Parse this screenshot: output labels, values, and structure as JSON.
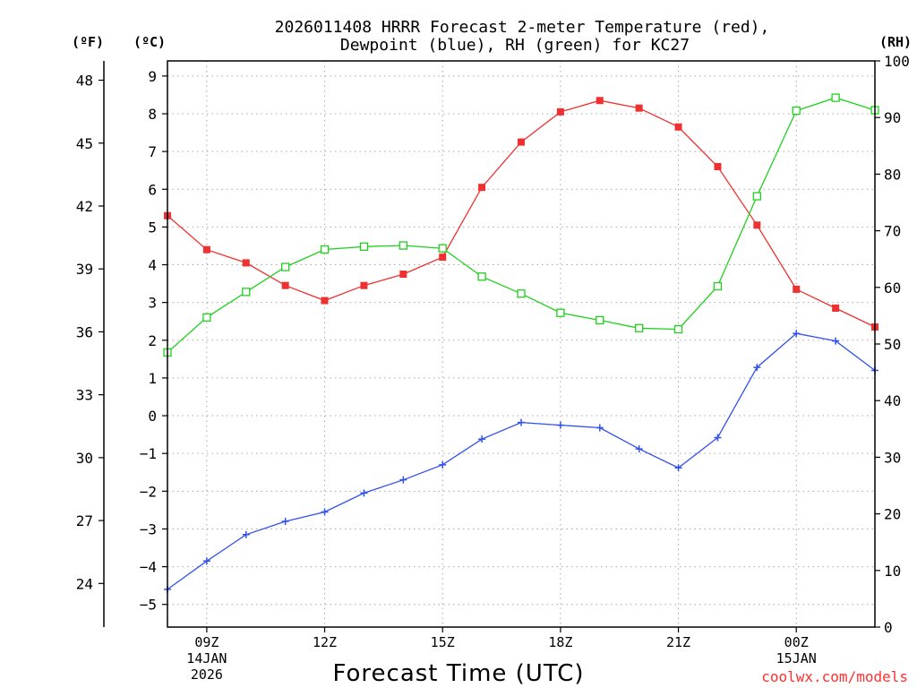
{
  "chart_data": {
    "type": "line",
    "title": [
      "2026011408 HRRR Forecast 2-meter Temperature (red),",
      "Dewpoint (blue), RH (green) for KC27"
    ],
    "xlabel": "Forecast Time (UTC)",
    "credit": "coolwx.com/models",
    "units": {
      "fahrenheit": "(ºF)",
      "celsius": "(ºC)",
      "rh": "(RH)"
    },
    "x_hours": [
      8,
      9,
      10,
      11,
      12,
      13,
      14,
      15,
      16,
      17,
      18,
      19,
      20,
      21,
      22,
      23,
      24,
      25,
      26
    ],
    "x_ticks": [
      {
        "hour": 9,
        "lines": [
          "09Z",
          "14JAN",
          "2026"
        ]
      },
      {
        "hour": 12,
        "lines": [
          "12Z"
        ]
      },
      {
        "hour": 15,
        "lines": [
          "15Z"
        ]
      },
      {
        "hour": 18,
        "lines": [
          "18Z"
        ]
      },
      {
        "hour": 21,
        "lines": [
          "21Z"
        ]
      },
      {
        "hour": 24,
        "lines": [
          "00Z",
          "15JAN"
        ]
      }
    ],
    "xlim": [
      8,
      26
    ],
    "ylim_celsius": [
      -5.6,
      9.4
    ],
    "ylim_rh": [
      0,
      100
    ],
    "left_celsius_ticks": [
      "−5",
      "−4",
      "−3",
      "−2",
      "−1",
      "0",
      "1",
      "2",
      "3",
      "4",
      "5",
      "6",
      "7",
      "8",
      "9"
    ],
    "left_fahrenheit_ticks": [
      "24",
      "27",
      "30",
      "33",
      "36",
      "39",
      "42",
      "45",
      "48"
    ],
    "right_rh_ticks": [
      "0",
      "10",
      "20",
      "30",
      "40",
      "50",
      "60",
      "70",
      "80",
      "90",
      "100"
    ],
    "series": [
      {
        "name": "2-meter Temperature",
        "axis": "celsius",
        "color": "#f03030",
        "marker": "filled-square",
        "values": [
          5.3,
          4.4,
          4.05,
          3.45,
          3.05,
          3.45,
          3.75,
          4.2,
          6.05,
          7.25,
          8.05,
          8.35,
          8.15,
          7.65,
          6.6,
          5.05,
          3.35,
          2.85,
          2.35
        ]
      },
      {
        "name": "Dewpoint",
        "axis": "celsius",
        "color": "#3050f0",
        "marker": "plus",
        "values": [
          -4.6,
          -3.85,
          -3.15,
          -2.8,
          -2.55,
          -2.05,
          -1.7,
          -1.3,
          -0.62,
          -0.18,
          -0.25,
          -0.32,
          -0.88,
          -1.38,
          -0.58,
          1.28,
          2.18,
          1.98,
          1.2
        ]
      },
      {
        "name": "RH",
        "axis": "rh",
        "color": "#20d020",
        "marker": "open-square",
        "values": [
          48.5,
          54.7,
          59.2,
          63.6,
          66.7,
          67.2,
          67.4,
          66.9,
          61.9,
          58.9,
          55.5,
          54.2,
          52.8,
          52.6,
          60.2,
          76.1,
          91.2,
          93.5,
          91.3
        ]
      }
    ]
  }
}
